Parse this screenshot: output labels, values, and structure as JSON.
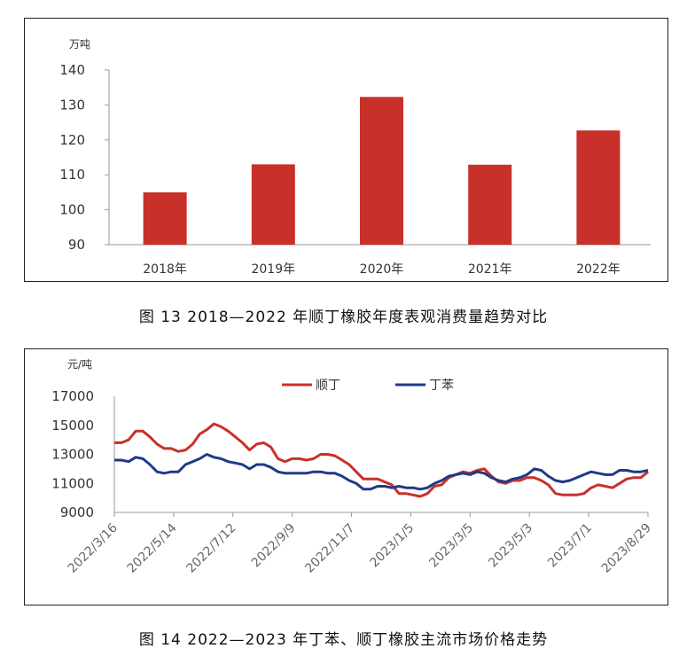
{
  "chart_data": [
    {
      "type": "bar",
      "title": "",
      "ylabel": "万吨",
      "xlabel": "",
      "ylim": [
        90,
        140
      ],
      "yticks": [
        90,
        100,
        110,
        120,
        130,
        140
      ],
      "grid": false,
      "legend": "none",
      "categories": [
        "2018年",
        "2019年",
        "2020年",
        "2021年",
        "2022年"
      ],
      "values": [
        105,
        113,
        132.3,
        112.9,
        122.7
      ],
      "color": "#c8302a"
    },
    {
      "type": "line",
      "title": "",
      "ylabel": "元/吨",
      "xlabel": "",
      "ylim": [
        9000,
        17000
      ],
      "yticks": [
        9000,
        11000,
        13000,
        15000,
        17000
      ],
      "grid": false,
      "legend": "top-center",
      "x_ticks": [
        "2022/3/16",
        "2022/5/14",
        "2022/7/12",
        "2022/9/9",
        "2022/11/7",
        "2023/1/5",
        "2023/3/5",
        "2023/5/3",
        "2023/7/1",
        "2023/8/29"
      ],
      "series": [
        {
          "name": "顺丁",
          "color": "#c8302a",
          "values": [
            13800,
            13800,
            14000,
            14600,
            14600,
            14200,
            13700,
            13400,
            13400,
            13200,
            13300,
            13700,
            14400,
            14700,
            15100,
            14900,
            14600,
            14200,
            13800,
            13300,
            13700,
            13800,
            13500,
            12700,
            12500,
            12700,
            12700,
            12600,
            12700,
            13000,
            13000,
            12900,
            12600,
            12300,
            11800,
            11300,
            11300,
            11300,
            11100,
            10900,
            10300,
            10300,
            10200,
            10100,
            10300,
            10800,
            10900,
            11400,
            11600,
            11800,
            11700,
            11900,
            12000,
            11500,
            11100,
            11000,
            11200,
            11200,
            11400,
            11400,
            11200,
            10900,
            10300,
            10200,
            10200,
            10200,
            10300,
            10700,
            10900,
            10800,
            10700,
            11000,
            11300,
            11400,
            11400,
            11800
          ]
        },
        {
          "name": "丁苯",
          "color": "#1e3a8a",
          "values": [
            12600,
            12600,
            12500,
            12800,
            12700,
            12300,
            11800,
            11700,
            11800,
            11800,
            12300,
            12500,
            12700,
            13000,
            12800,
            12700,
            12500,
            12400,
            12300,
            12000,
            12300,
            12300,
            12100,
            11800,
            11700,
            11700,
            11700,
            11700,
            11800,
            11800,
            11700,
            11700,
            11500,
            11200,
            11000,
            10600,
            10600,
            10800,
            10800,
            10700,
            10800,
            10700,
            10700,
            10600,
            10700,
            11000,
            11200,
            11500,
            11600,
            11700,
            11600,
            11800,
            11700,
            11400,
            11200,
            11100,
            11300,
            11400,
            11600,
            12000,
            11900,
            11500,
            11200,
            11100,
            11200,
            11400,
            11600,
            11800,
            11700,
            11600,
            11600,
            11900,
            11900,
            11800,
            11800,
            11900
          ]
        }
      ]
    }
  ],
  "captions": {
    "fig13": "图 13  2018—2022 年顺丁橡胶年度表观消费量趋势对比",
    "fig14": "图 14  2022—2023 年丁苯、顺丁橡胶主流市场价格走势"
  }
}
